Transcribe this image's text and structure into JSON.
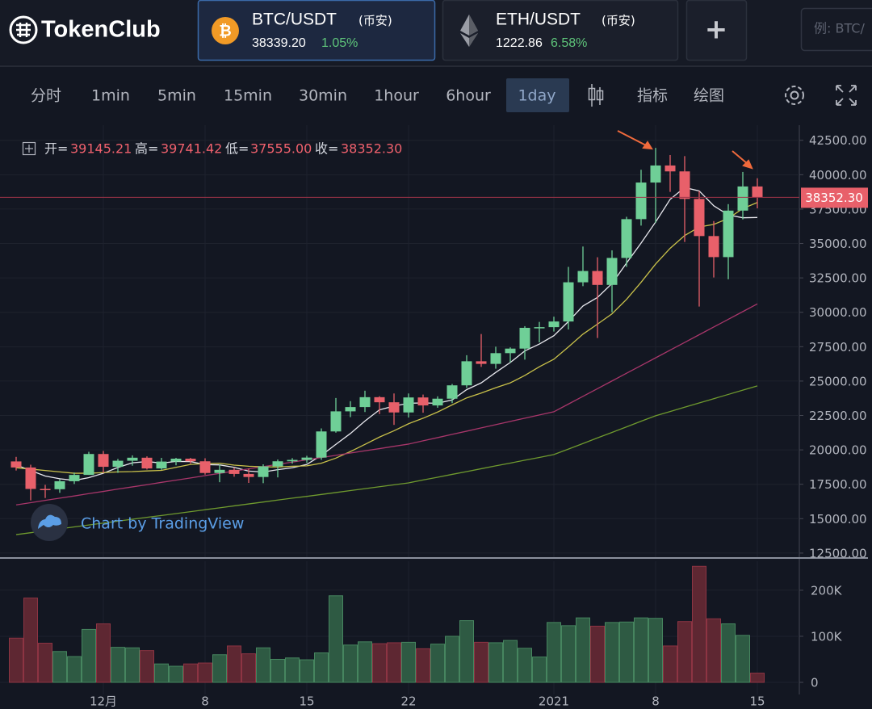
{
  "header": {
    "logo": "TokenClub",
    "tabs": [
      {
        "pair": "BTC/USDT",
        "exchange": "(币安)",
        "price": "38339.20",
        "change": "1.05%"
      },
      {
        "pair": "ETH/USDT",
        "exchange": "(币安)",
        "price": "1222.86",
        "change": "6.58%"
      }
    ],
    "add": "+",
    "search_placeholder": "例: BTC/"
  },
  "toolbar": {
    "intervals": [
      "分时",
      "1min",
      "5min",
      "15min",
      "30min",
      "1hour",
      "6hour",
      "1day"
    ],
    "active_interval": 7,
    "tools": [
      "指标",
      "绘图"
    ]
  },
  "chart_data": {
    "type": "candlestick",
    "ohlc_legend": [
      {
        "label": "开=",
        "value": "39145.21"
      },
      {
        "label": "高=",
        "value": "39741.42"
      },
      {
        "label": "低=",
        "value": "37555.00"
      },
      {
        "label": "收=",
        "value": "38352.30"
      }
    ],
    "last_price_label": "38352.30",
    "watermark": "Chart by TradingView",
    "categories": [
      null,
      null,
      null,
      null,
      null,
      null,
      "12月",
      null,
      null,
      null,
      null,
      null,
      null,
      "8",
      null,
      null,
      null,
      null,
      null,
      null,
      "15",
      null,
      null,
      null,
      null,
      null,
      null,
      "22",
      null,
      null,
      null,
      null,
      null,
      null,
      null,
      null,
      null,
      "2021",
      null,
      null,
      null,
      null,
      null,
      null,
      "8",
      null,
      null,
      null,
      null,
      null,
      null,
      "15"
    ],
    "open": [
      19160,
      18720,
      17160,
      17140,
      17720,
      18180,
      19700,
      18770,
      19210,
      19430,
      18650,
      19150,
      19360,
      19170,
      18320,
      18550,
      18250,
      18030,
      18800,
      19170,
      19270,
      19440,
      21340,
      22800,
      23110,
      23830,
      23460,
      22720,
      23810,
      23230,
      23720,
      24690,
      26440,
      26250,
      27030,
      27360,
      28870,
      28920,
      29330,
      32180,
      33000,
      31990,
      33950,
      36770,
      39430,
      40670,
      40240,
      38240,
      35540,
      34010,
      37390,
      39145.21
    ],
    "high": [
      19490,
      18920,
      17460,
      17860,
      18350,
      19860,
      19920,
      19340,
      19600,
      19530,
      19420,
      19420,
      19420,
      19390,
      18950,
      18700,
      18640,
      18950,
      19300,
      19400,
      19570,
      21560,
      23770,
      23540,
      24300,
      23900,
      24100,
      24100,
      24020,
      23890,
      24790,
      26880,
      28420,
      27500,
      27450,
      28990,
      29300,
      29680,
      33300,
      34780,
      34000,
      34500,
      36940,
      40360,
      41950,
      41430,
      41350,
      38820,
      36630,
      37860,
      40200,
      39741.42
    ],
    "low": [
      18500,
      16330,
      16500,
      16880,
      17520,
      18180,
      18330,
      18330,
      18850,
      18570,
      18550,
      18880,
      19000,
      18200,
      17650,
      18050,
      17600,
      17580,
      18000,
      19000,
      19050,
      19270,
      21250,
      22380,
      22750,
      22600,
      21815,
      22350,
      22700,
      23060,
      23400,
      24500,
      26030,
      25900,
      26350,
      26560,
      27810,
      28600,
      28750,
      31900,
      28130,
      30000,
      33300,
      36300,
      36500,
      38750,
      35110,
      30420,
      32530,
      32400,
      36750,
      37555
    ],
    "close": [
      18720,
      17160,
      17140,
      17720,
      18180,
      19700,
      18770,
      19210,
      19430,
      18650,
      19150,
      19360,
      19170,
      18320,
      18550,
      18250,
      18030,
      18800,
      19170,
      19270,
      19440,
      21340,
      22800,
      23110,
      23830,
      23460,
      22720,
      23810,
      23230,
      23720,
      24690,
      26440,
      26250,
      27030,
      27360,
      28870,
      28920,
      29330,
      32180,
      33000,
      31990,
      33950,
      36770,
      39430,
      40670,
      40240,
      38240,
      35540,
      34010,
      37390,
      39145.21,
      38352.3
    ],
    "ma_lines": [
      {
        "color": "#e8e8ee",
        "values": [
          18900,
          18500,
          18100,
          17900,
          17780,
          17980,
          18300,
          18720,
          19060,
          19150,
          19040,
          19160,
          19150,
          18930,
          18910,
          18730,
          18460,
          18390,
          18560,
          18700,
          18940,
          19600,
          20400,
          21190,
          22100,
          22910,
          23180,
          23390,
          23410,
          23390,
          23630,
          24380,
          24870,
          25630,
          26350,
          27190,
          27690,
          28300,
          29330,
          30460,
          31080,
          32090,
          33580,
          35030,
          36560,
          38210,
          39070,
          38820,
          37740,
          37080,
          36870,
          36890
        ]
      },
      {
        "color": "#c9c14a",
        "values": [
          18700,
          18600,
          18500,
          18400,
          18300,
          18300,
          18350,
          18400,
          18420,
          18470,
          18510,
          18730,
          18940,
          19000,
          19030,
          18890,
          18810,
          18770,
          18750,
          18810,
          18840,
          19030,
          19400,
          19880,
          20400,
          20930,
          21390,
          21900,
          22300,
          22750,
          23270,
          23780,
          24130,
          24520,
          24870,
          25410,
          26040,
          26590,
          27480,
          28410,
          29140,
          29890,
          30940,
          32180,
          33510,
          34650,
          35580,
          36200,
          36390,
          36820,
          37540,
          37980
        ]
      },
      {
        "color": "#a8366a",
        "values": [
          16000,
          16160,
          16330,
          16490,
          16650,
          16820,
          16980,
          17150,
          17310,
          17470,
          17640,
          17800,
          17960,
          18130,
          18290,
          18460,
          18620,
          18780,
          18950,
          19110,
          19280,
          19440,
          19600,
          19770,
          19930,
          20090,
          20260,
          20420,
          20660,
          20890,
          21130,
          21360,
          21600,
          21830,
          22070,
          22300,
          22540,
          22770,
          23330,
          23890,
          24450,
          25010,
          25570,
          26130,
          26690,
          27250,
          27810,
          28370,
          28930,
          29490,
          30050,
          30610
        ]
      },
      {
        "color": "#6f9a2e",
        "values": [
          13840,
          13980,
          14120,
          14260,
          14400,
          14540,
          14680,
          14820,
          14960,
          15100,
          15230,
          15370,
          15510,
          15650,
          15790,
          15930,
          16070,
          16210,
          16350,
          16490,
          16620,
          16760,
          16900,
          17040,
          17180,
          17320,
          17460,
          17600,
          17810,
          18010,
          18220,
          18420,
          18630,
          18840,
          19040,
          19250,
          19450,
          19660,
          20060,
          20460,
          20870,
          21270,
          21670,
          22080,
          22480,
          22790,
          23100,
          23410,
          23720,
          24030,
          24340,
          24650
        ]
      }
    ],
    "volume": [
      96000,
      183000,
      85000,
      67000,
      56000,
      115000,
      127000,
      76000,
      75000,
      69000,
      40000,
      35000,
      40000,
      42000,
      60000,
      79000,
      62000,
      75000,
      50000,
      53000,
      49000,
      64000,
      188000,
      81000,
      88000,
      84000,
      86000,
      87000,
      73000,
      83000,
      100000,
      134000,
      87000,
      86000,
      91000,
      74000,
      55000,
      130000,
      123000,
      140000,
      122000,
      130000,
      131000,
      140000,
      139000,
      79000,
      132000,
      252000,
      138000,
      127000,
      102000,
      20000
    ],
    "up_color": "#6fcf97",
    "down_color": "#e8606a",
    "ylim": [
      12200,
      43600
    ],
    "yticks": [
      {
        "value": 42500,
        "label": "42500.00"
      },
      {
        "value": 40000,
        "label": "40000.00"
      },
      {
        "value": 37500,
        "label": "37500.00"
      },
      {
        "value": 35000,
        "label": "35000.00"
      },
      {
        "value": 32500,
        "label": "32500.00"
      },
      {
        "value": 30000,
        "label": "30000.00"
      },
      {
        "value": 27500,
        "label": "27500.00"
      },
      {
        "value": 25000,
        "label": "25000.00"
      },
      {
        "value": 22500,
        "label": "22500.00"
      },
      {
        "value": 20000,
        "label": "20000.00"
      },
      {
        "value": 17500,
        "label": "17500.00"
      },
      {
        "value": 15000,
        "label": "15000.00"
      },
      {
        "value": 12500,
        "label": "12500.00"
      }
    ],
    "volume_ylim": [
      0,
      263000
    ],
    "volume_yticks": [
      0,
      {
        "value": 100000,
        "label": "100K"
      },
      {
        "value": 200000,
        "label": "200K"
      }
    ],
    "grid": true
  }
}
